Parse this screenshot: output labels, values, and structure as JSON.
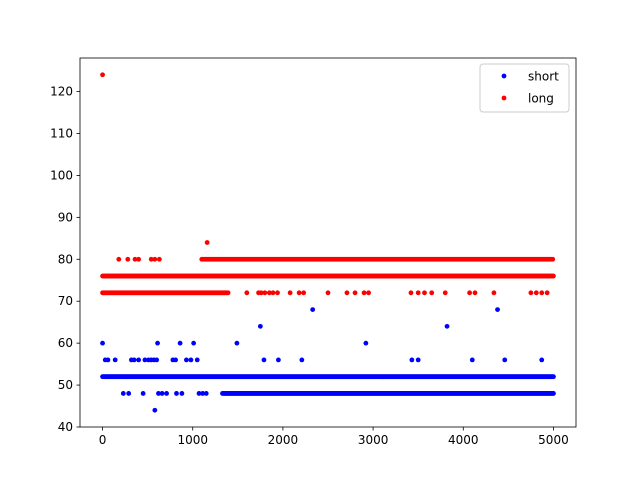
{
  "chart_data": {
    "type": "scatter",
    "title": "",
    "xlabel": "",
    "ylabel": "",
    "xlim": [
      -250,
      5250
    ],
    "ylim": [
      40,
      128
    ],
    "x_ticks": [
      0,
      1000,
      2000,
      3000,
      4000,
      5000
    ],
    "y_ticks": [
      40,
      50,
      60,
      70,
      80,
      90,
      100,
      110,
      120
    ],
    "grid": false,
    "legend": {
      "position": "top-right",
      "entries": [
        "short",
        "long"
      ]
    },
    "series": [
      {
        "name": "short",
        "color": "#0000ff",
        "bands": [
          {
            "y": 52,
            "x_range": [
              0,
              5000
            ],
            "step": 10
          },
          {
            "y": 48,
            "x_range": [
              1330,
              5000
            ],
            "step": 10
          }
        ],
        "points": [
          [
            0,
            60
          ],
          [
            30,
            56
          ],
          [
            60,
            56
          ],
          [
            140,
            56
          ],
          [
            230,
            48
          ],
          [
            290,
            48
          ],
          [
            320,
            56
          ],
          [
            350,
            56
          ],
          [
            400,
            56
          ],
          [
            450,
            48
          ],
          [
            470,
            56
          ],
          [
            510,
            56
          ],
          [
            540,
            56
          ],
          [
            570,
            56
          ],
          [
            580,
            44
          ],
          [
            600,
            56
          ],
          [
            610,
            60
          ],
          [
            620,
            48
          ],
          [
            660,
            48
          ],
          [
            710,
            48
          ],
          [
            780,
            56
          ],
          [
            810,
            56
          ],
          [
            820,
            48
          ],
          [
            860,
            60
          ],
          [
            880,
            48
          ],
          [
            930,
            56
          ],
          [
            980,
            56
          ],
          [
            1010,
            60
          ],
          [
            1050,
            56
          ],
          [
            1070,
            48
          ],
          [
            1110,
            48
          ],
          [
            1150,
            48
          ],
          [
            1490,
            60
          ],
          [
            1750,
            64
          ],
          [
            1790,
            56
          ],
          [
            1950,
            56
          ],
          [
            2210,
            56
          ],
          [
            2330,
            68
          ],
          [
            2920,
            60
          ],
          [
            3430,
            56
          ],
          [
            3500,
            56
          ],
          [
            3820,
            64
          ],
          [
            4100,
            56
          ],
          [
            4380,
            68
          ],
          [
            4460,
            56
          ],
          [
            4870,
            56
          ]
        ]
      },
      {
        "name": "long",
        "color": "#ff0000",
        "bands": [
          {
            "y": 76,
            "x_range": [
              0,
              5000
            ],
            "step": 10
          },
          {
            "y": 72,
            "x_range": [
              0,
              1400
            ],
            "step": 12
          },
          {
            "y": 80,
            "x_range": [
              1100,
              5000
            ],
            "step": 14
          }
        ],
        "points": [
          [
            0,
            124
          ],
          [
            180,
            80
          ],
          [
            280,
            80
          ],
          [
            360,
            80
          ],
          [
            400,
            80
          ],
          [
            540,
            80
          ],
          [
            580,
            80
          ],
          [
            630,
            80
          ],
          [
            1160,
            84
          ],
          [
            1600,
            72
          ],
          [
            1730,
            72
          ],
          [
            1760,
            72
          ],
          [
            1800,
            72
          ],
          [
            1850,
            72
          ],
          [
            1890,
            72
          ],
          [
            1940,
            72
          ],
          [
            2080,
            72
          ],
          [
            2180,
            72
          ],
          [
            2230,
            72
          ],
          [
            2500,
            72
          ],
          [
            2710,
            72
          ],
          [
            2800,
            72
          ],
          [
            2900,
            72
          ],
          [
            2950,
            72
          ],
          [
            3420,
            72
          ],
          [
            3500,
            72
          ],
          [
            3570,
            72
          ],
          [
            3650,
            72
          ],
          [
            3800,
            72
          ],
          [
            4070,
            72
          ],
          [
            4130,
            72
          ],
          [
            4340,
            72
          ],
          [
            4750,
            72
          ],
          [
            4810,
            72
          ],
          [
            4870,
            72
          ],
          [
            4930,
            72
          ]
        ]
      }
    ]
  }
}
